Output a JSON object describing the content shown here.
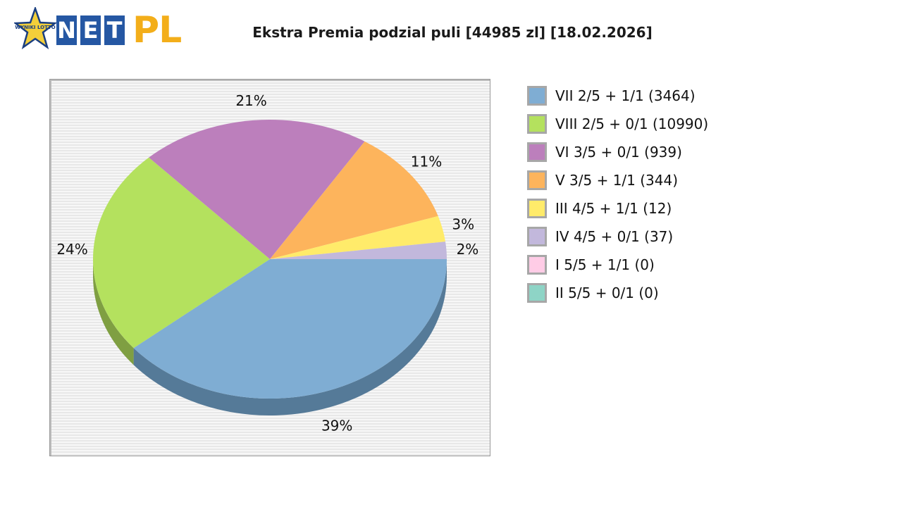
{
  "logo": {
    "badge_text": "WYNIKI LOTTO",
    "letters": [
      "N",
      "E",
      "T"
    ],
    "suffix": "PL"
  },
  "chart_data": {
    "type": "pie",
    "title": "Ekstra Premia podzial puli [44985 zl] [18.02.2026]",
    "legend_position": "right",
    "slices": [
      {
        "name": "VII 2/5 + 1/1 (3464)",
        "percent": 39,
        "percent_label": "39%",
        "color": "#7fadd3",
        "side_color": "#557a98"
      },
      {
        "name": "VIII 2/5 + 0/1 (10990)",
        "percent": 24,
        "percent_label": "24%",
        "color": "#b4e15e",
        "side_color": "#7f9f42"
      },
      {
        "name": "VI 3/5 + 0/1 (939)",
        "percent": 21,
        "percent_label": "21%",
        "color": "#bc7fbc",
        "side_color": "#855a85"
      },
      {
        "name": "V 3/5 + 1/1 (344)",
        "percent": 11,
        "percent_label": "11%",
        "color": "#fdb45c",
        "side_color": "#b38040"
      },
      {
        "name": "III 4/5 + 1/1 (12)",
        "percent": 3,
        "percent_label": "3%",
        "color": "#ffeb6a",
        "side_color": "#b4a64b"
      },
      {
        "name": "IV 4/5 + 0/1 (37)",
        "percent": 2,
        "percent_label": "2%",
        "color": "#c2b8dc",
        "side_color": "#89829c"
      },
      {
        "name": "I 5/5 + 1/1 (0)",
        "percent": 0,
        "percent_label": "",
        "color": "#ffcce6",
        "side_color": "#b490a3"
      },
      {
        "name": "II 5/5 + 0/1 (0)",
        "percent": 0,
        "percent_label": "",
        "color": "#8ed4c6",
        "side_color": "#65968c"
      }
    ]
  }
}
